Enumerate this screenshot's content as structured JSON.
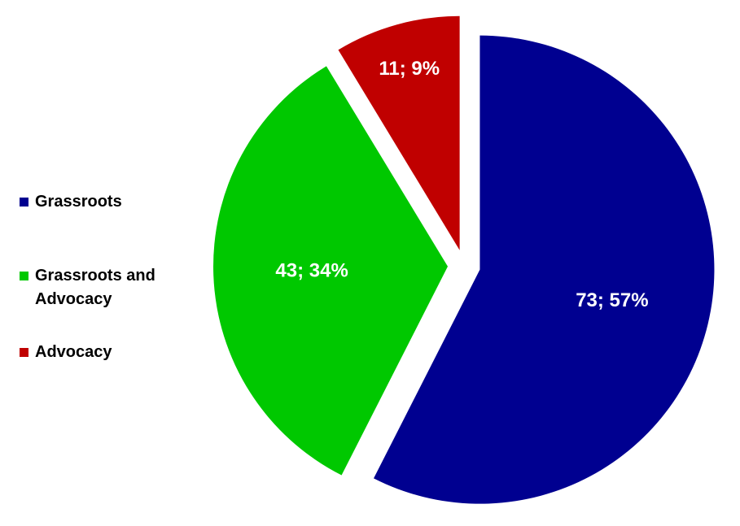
{
  "chart_data": {
    "type": "pie",
    "categories": [
      "Grassroots",
      "Grassroots and Advocacy",
      "Advocacy"
    ],
    "values": [
      73,
      43,
      11
    ],
    "value_labels": [
      "73; 57%",
      "43; 34%",
      "11; 9%"
    ],
    "colors": [
      "#000090",
      "#00c800",
      "#c00000"
    ],
    "legend": "left"
  }
}
